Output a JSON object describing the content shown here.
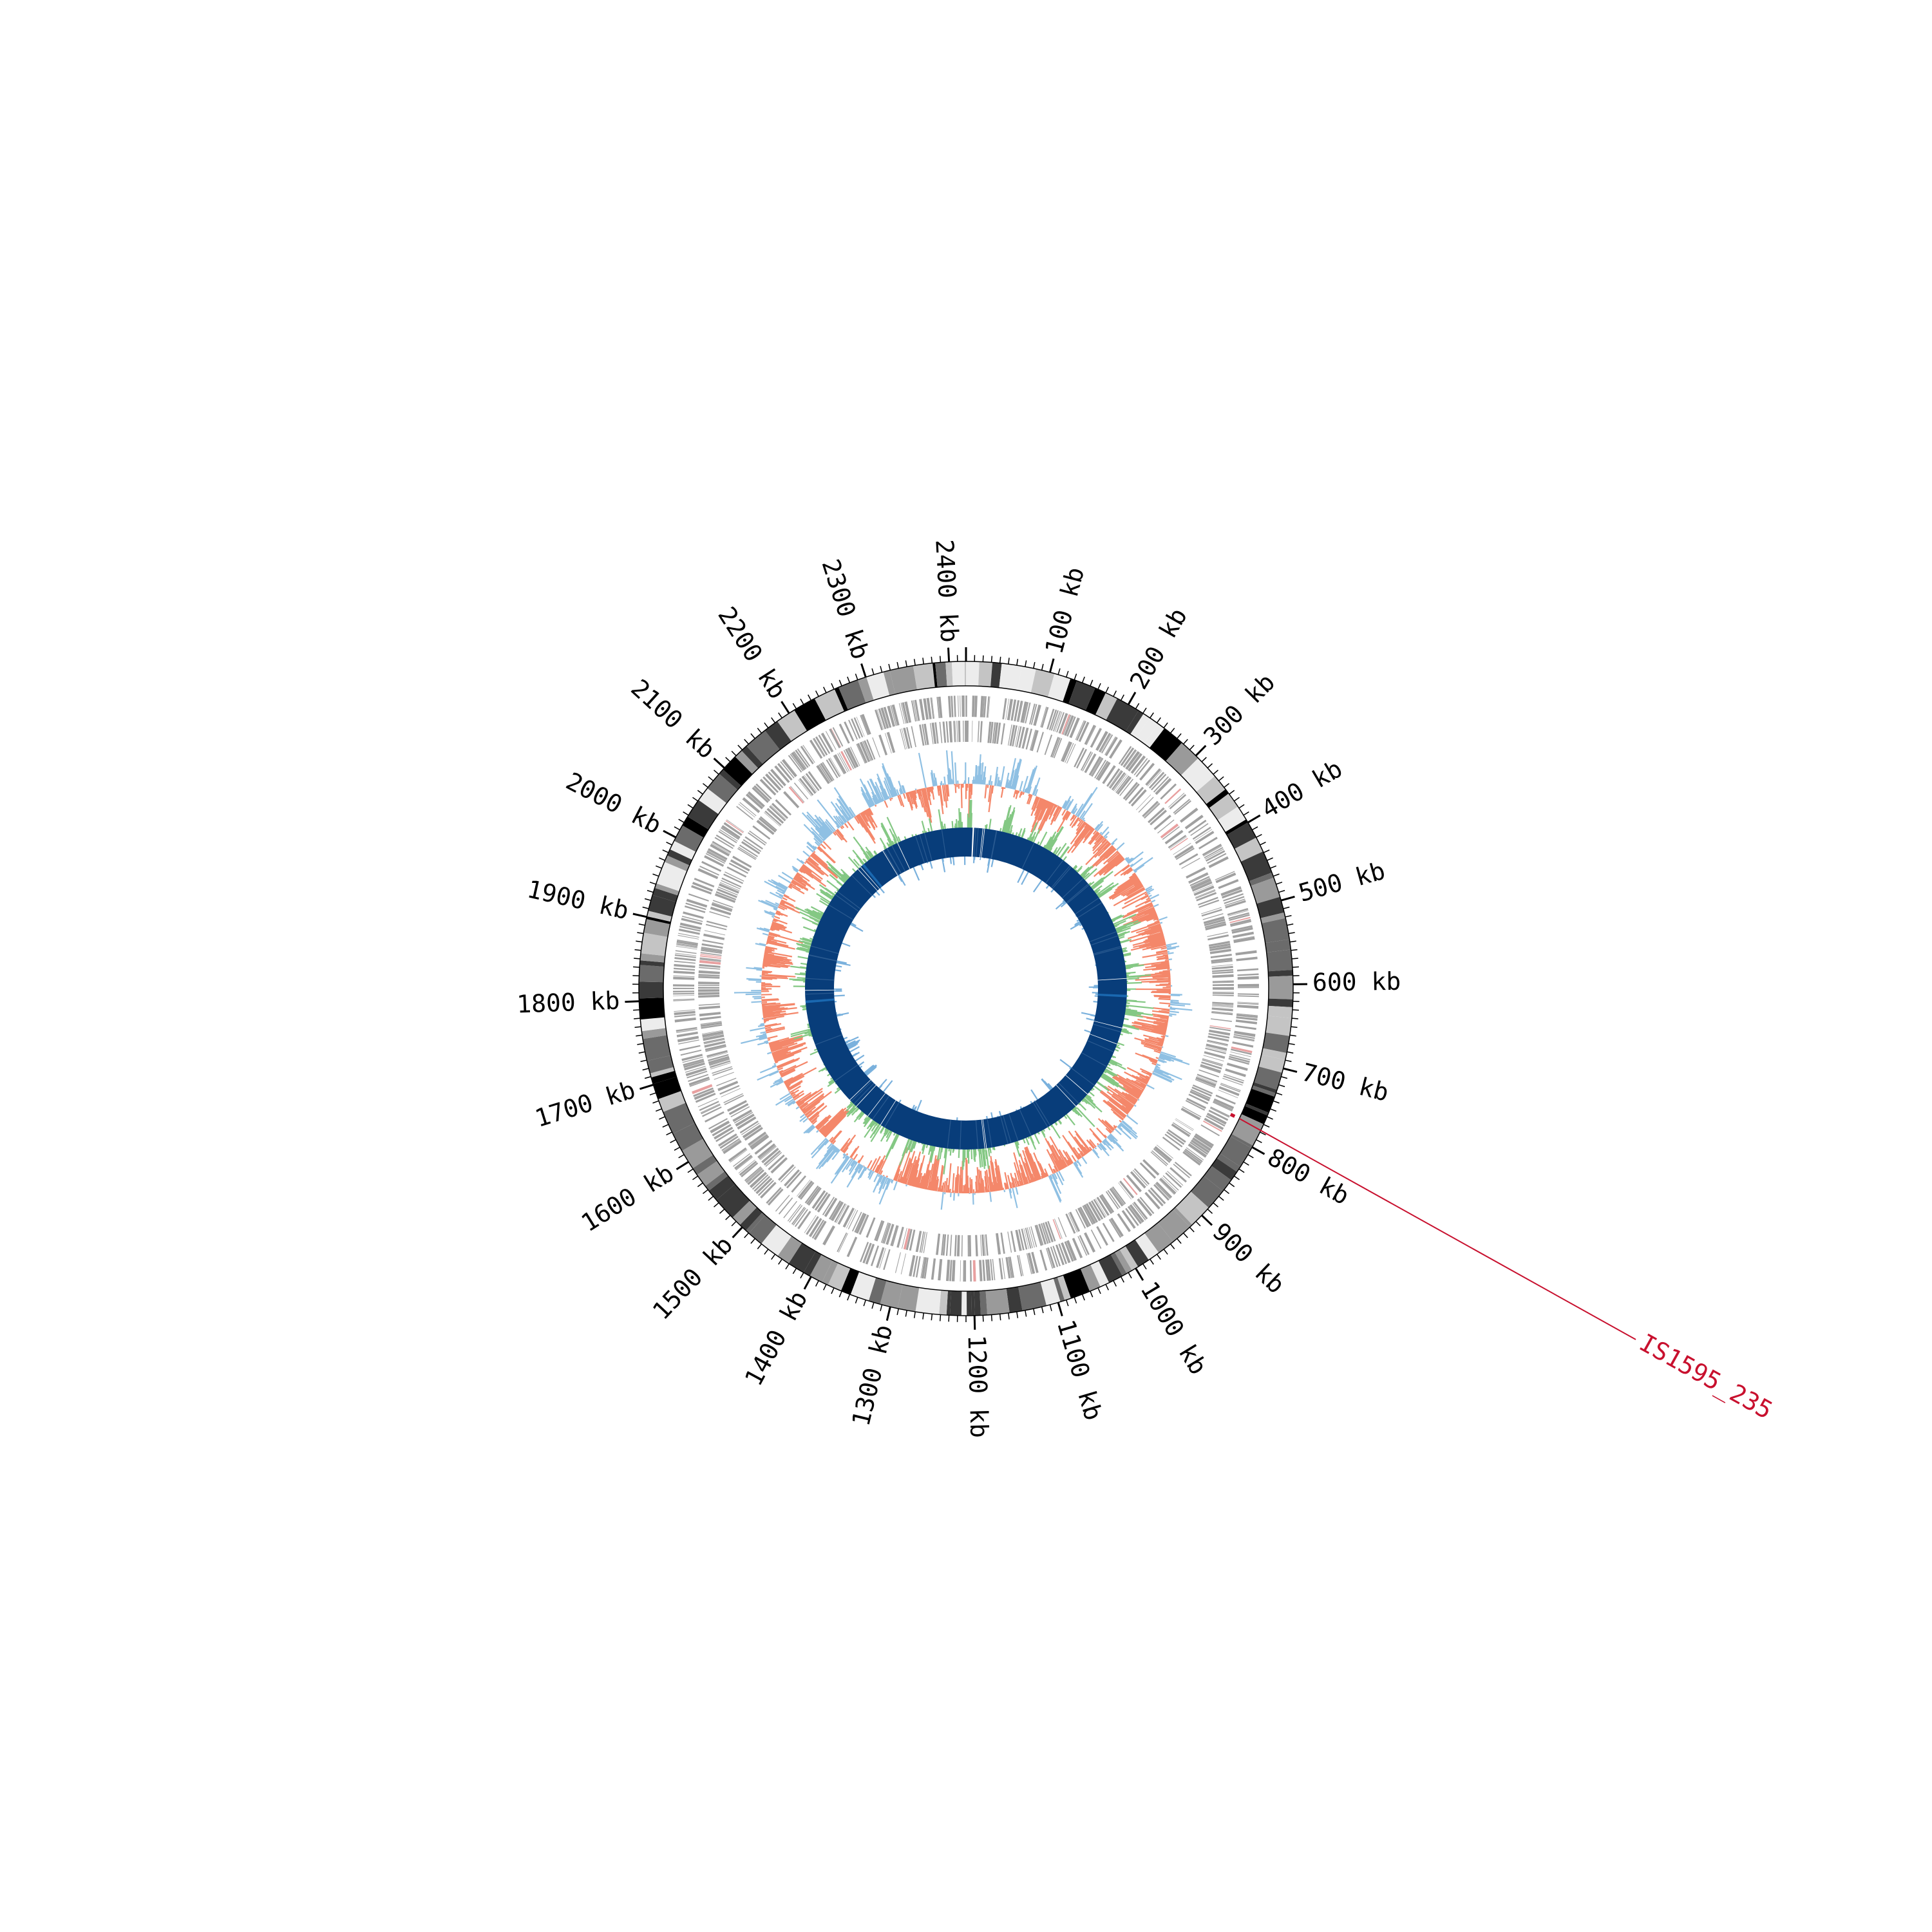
{
  "genome": {
    "length_kb": 2420,
    "tick_labels": [
      "100 kb",
      "200 kb",
      "300 kb",
      "400 kb",
      "500 kb",
      "600 kb",
      "700 kb",
      "800 kb",
      "900 kb",
      "1000 kb",
      "1100 kb",
      "1200 kb",
      "1300 kb",
      "1400 kb",
      "1500 kb",
      "1600 kb",
      "1700 kb",
      "1800 kb",
      "1900 kb",
      "2000 kb",
      "2100 kb",
      "2200 kb",
      "2300 kb",
      "2400 kb"
    ],
    "tick_positions_kb": [
      100,
      200,
      300,
      400,
      500,
      600,
      700,
      800,
      900,
      1000,
      1100,
      1200,
      1300,
      1400,
      1500,
      1600,
      1700,
      1800,
      1900,
      2000,
      2100,
      2200,
      2300,
      2400
    ]
  },
  "annotation": {
    "label": "IS1595_235",
    "position_kb": 776,
    "color": "#c8102e"
  },
  "tracks": {
    "ideogram_colors": [
      "#000000",
      "#3a3a3a",
      "#6b6b6b",
      "#9a9a9a",
      "#c4c4c4",
      "#ececec"
    ],
    "gene_color": "#a0a0a0",
    "gene_highlight_color": "#e8a0a0",
    "skew_positive_color": "#8fc0e3",
    "skew_negative_color": "#f4876a",
    "gc_positive_color": "#84c884",
    "gc_negative_color": "#7ab1dd",
    "contig_color": "#083d7a",
    "contig_highlight_color": "#1a68b0",
    "contig_gaps_kb": [
      16,
      40,
      44,
      1160,
      1164,
      580,
      1810,
      2136,
      2144,
      2210,
      1425,
      1462,
      1498,
      1520,
      920,
      880,
      740,
      700,
      2250
    ]
  }
}
